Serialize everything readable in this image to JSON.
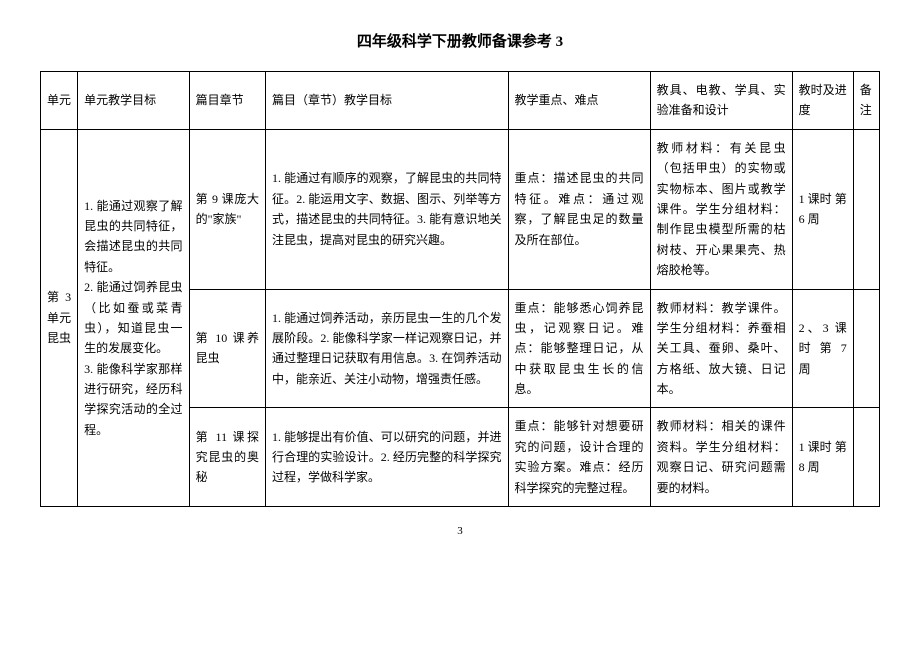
{
  "title": "四年级科学下册教师备课参考 3",
  "page_number": "3",
  "columns": {
    "unit": "单元",
    "unit_goal": "单元教学目标",
    "chapter": "篇目章节",
    "chapter_goal": "篇目（章节）教学目标",
    "focus": "教学重点、难点",
    "tools": "教具、电教、学具、实验准备和设计",
    "time": "教时及进度",
    "note": "备注"
  },
  "unit": {
    "label": "第 3 单元昆虫",
    "goal": "1. 能通过观察了解昆虫的共同特征，会描述昆虫的共同特征。\n2. 能通过饲养昆虫（比如蚕或菜青虫），知道昆虫一生的发展变化。\n3. 能像科学家那样进行研究，经历科学探究活动的全过程。"
  },
  "rows": [
    {
      "chapter": "第 9 课庞大的\"家族\"",
      "chapter_goal": "1. 能通过有顺序的观察，了解昆虫的共同特征。2. 能运用文字、数据、图示、列举等方式，描述昆虫的共同特征。3. 能有意识地关注昆虫，提高对昆虫的研究兴趣。",
      "focus": "重点：描述昆虫的共同特征。难点：通过观察，了解昆虫足的数量及所在部位。",
      "tools": "教师材料：有关昆虫（包括甲虫）的实物或实物标本、图片或教学课件。学生分组材料：制作昆虫模型所需的枯树枝、开心果果壳、热熔胶枪等。",
      "time": "1 课时 第 6 周",
      "note": ""
    },
    {
      "chapter": "第 10 课养昆虫",
      "chapter_goal": "1. 能通过饲养活动，亲历昆虫一生的几个发展阶段。2. 能像科学家一样记观察日记，并通过整理日记获取有用信息。3. 在饲养活动中，能亲近、关注小动物，增强责任感。",
      "focus": "重点：能够悉心饲养昆虫，记观察日记。难点：能够整理日记，从中获取昆虫生长的信息。",
      "tools": "教师材料：教学课件。学生分组材料：养蚕相关工具、蚕卵、桑叶、方格纸、放大镜、日记本。",
      "time": "2、3 课时 第 7 周",
      "note": ""
    },
    {
      "chapter": "第 11 课探究昆虫的奥秘",
      "chapter_goal": "1. 能够提出有价值、可以研究的问题，并进行合理的实验设计。2. 经历完整的科学探究过程，学做科学家。",
      "focus": "重点：能够针对想要研究的问题，设计合理的实验方案。难点：经历科学探究的完整过程。",
      "tools": "教师材料：相关的课件资料。学生分组材料：观察日记、研究问题需要的材料。",
      "time": "1 课时 第 8 周",
      "note": ""
    }
  ]
}
